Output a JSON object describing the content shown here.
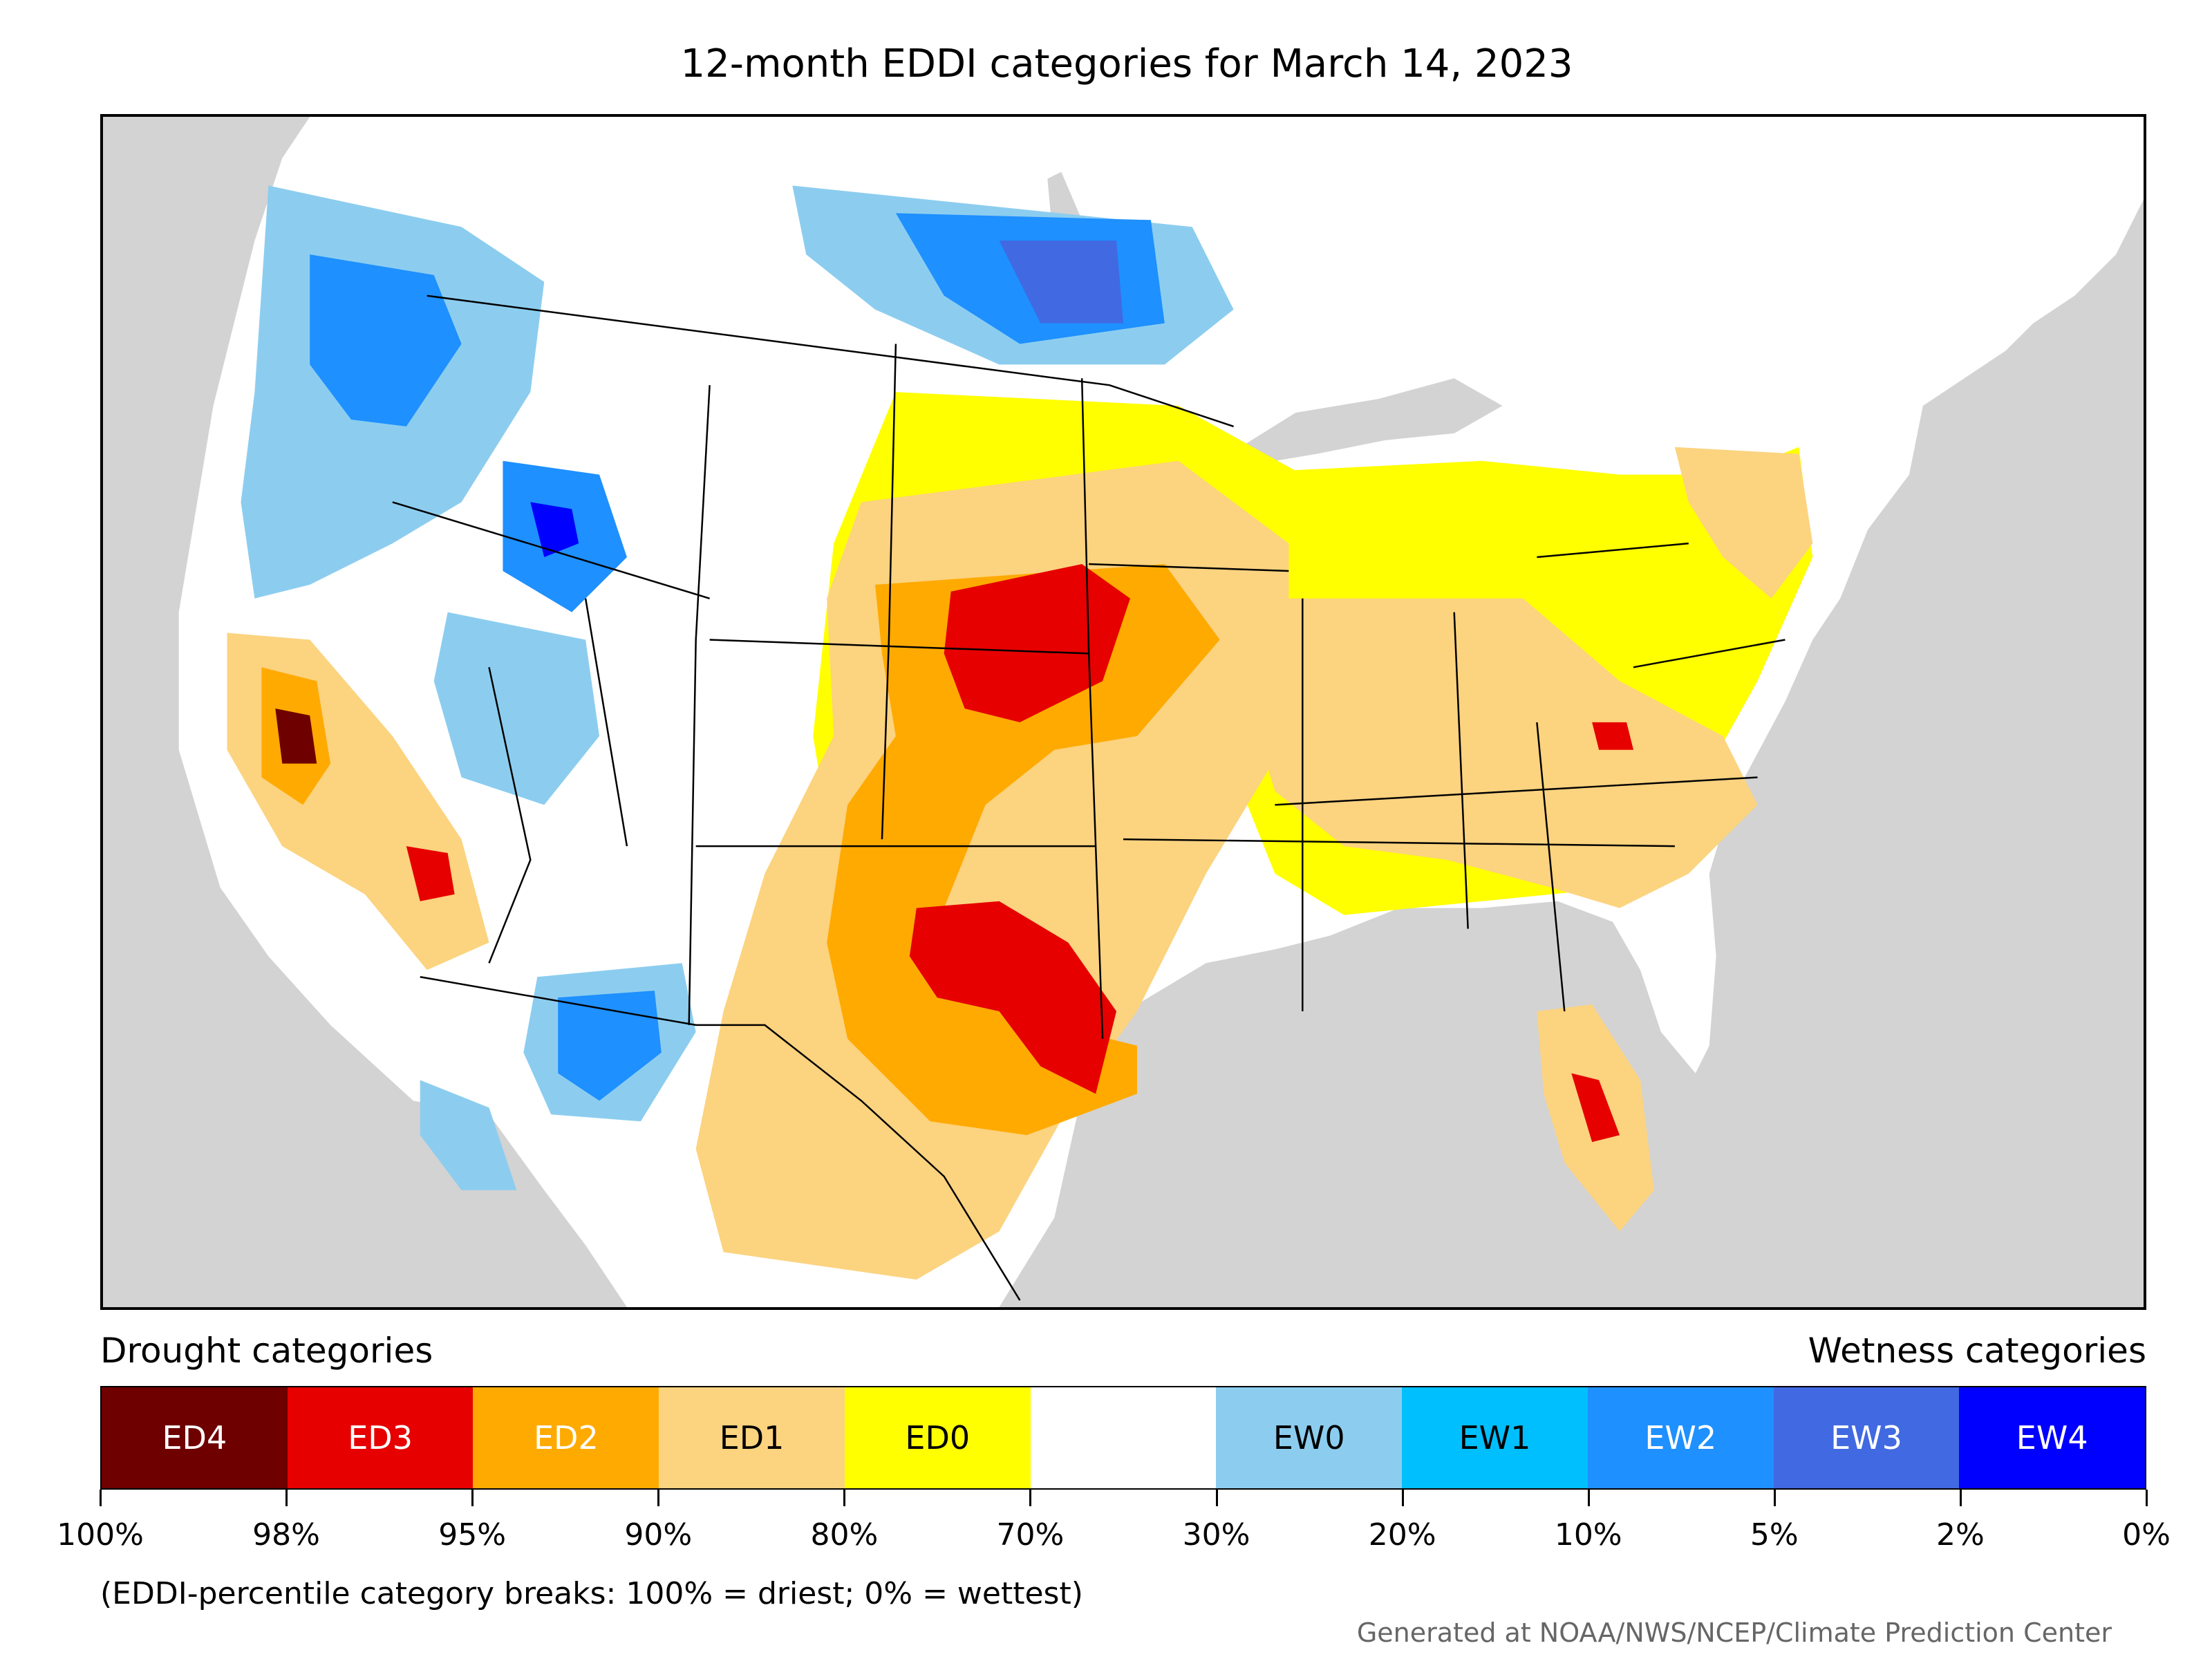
{
  "title": "12-month EDDI categories for March 14, 2023",
  "legend": {
    "drought_heading": "Drought categories",
    "wetness_heading": "Wetness categories",
    "categories": [
      {
        "label": "ED4",
        "color": "#6e0000",
        "text_color": "#ffffff"
      },
      {
        "label": "ED3",
        "color": "#e60000",
        "text_color": "#ffffff"
      },
      {
        "label": "ED2",
        "color": "#ffaa00",
        "text_color": "#ffffff"
      },
      {
        "label": "ED1",
        "color": "#fcd37f",
        "text_color": "#000000"
      },
      {
        "label": "ED0",
        "color": "#ffff00",
        "text_color": "#000000"
      },
      {
        "label": "",
        "color": "#ffffff",
        "text_color": "#000000"
      },
      {
        "label": "EW0",
        "color": "#8ccdef",
        "text_color": "#000000"
      },
      {
        "label": "EW1",
        "color": "#00bfff",
        "text_color": "#000000"
      },
      {
        "label": "EW2",
        "color": "#1e90ff",
        "text_color": "#ffffff"
      },
      {
        "label": "EW3",
        "color": "#4169e1",
        "text_color": "#ffffff"
      },
      {
        "label": "EW4",
        "color": "#0000ff",
        "text_color": "#ffffff"
      }
    ],
    "breaks": [
      "100%",
      "98%",
      "95%",
      "90%",
      "80%",
      "70%",
      "30%",
      "20%",
      "10%",
      "5%",
      "2%",
      "0%"
    ]
  },
  "note": "(EDDI-percentile category breaks: 100% = driest; 0% = wettest)",
  "credit": "Generated at NOAA/NWS/NCEP/Climate Prediction Center",
  "map": {
    "background_color": "#d3d3d3",
    "land_color": "#ffffff",
    "boundary_color": "#000000"
  }
}
